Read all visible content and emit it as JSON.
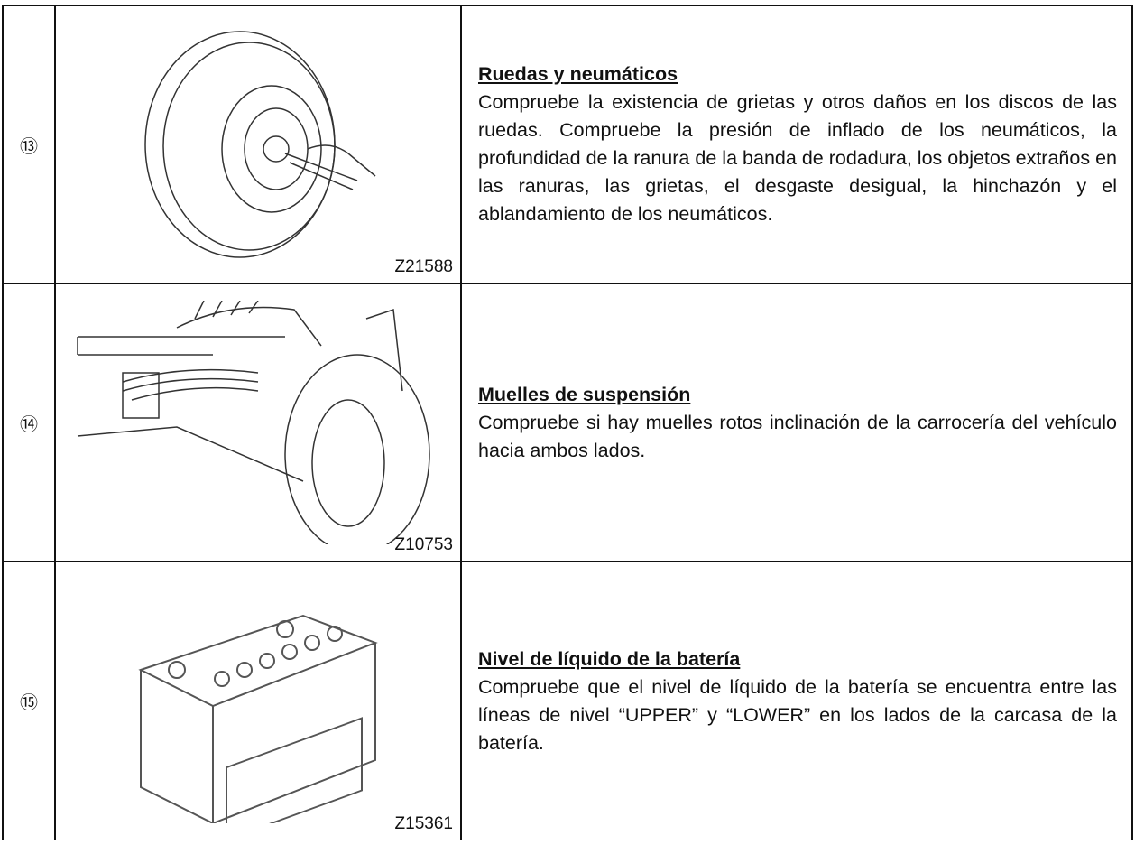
{
  "rows": [
    {
      "number": "⑬",
      "image_code": "Z21588",
      "title": "Ruedas y neumáticos",
      "text": "Compruebe la existencia de grietas y otros daños en los discos de las ruedas. Compruebe la presión de inflado de los neumáticos, la profundidad de la ranura de la banda de rodadura, los objetos extraños en las ranuras, las grietas, el desgaste desigual, la hinchazón y el ablandamiento de los neumáticos."
    },
    {
      "number": "⑭",
      "image_code": "Z10753",
      "title": "Muelles de suspensión",
      "text": "Compruebe si hay muelles rotos inclinación de la carrocería del vehículo hacia ambos lados."
    },
    {
      "number": "⑮",
      "image_code": "Z15361",
      "title": "Nivel de líquido de la batería",
      "text": "Compruebe que el nivel de líquido de la batería se encuentra entre las líneas de nivel “UPPER” y “LOWER” en los lados de la carcasa de la batería."
    }
  ]
}
